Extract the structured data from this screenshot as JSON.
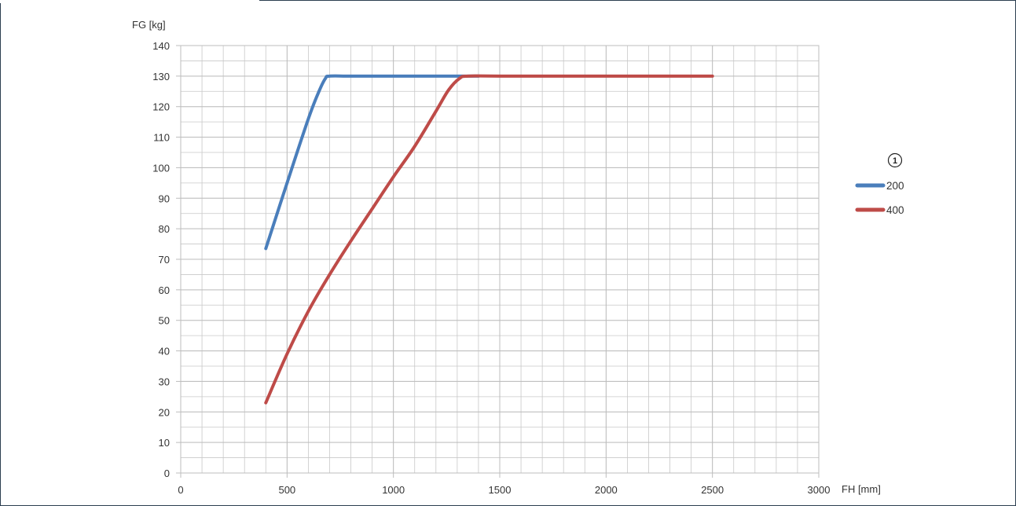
{
  "chart_data": {
    "type": "line",
    "title": "",
    "xlabel": "FH [mm]",
    "ylabel": "FG [kg]",
    "xlim": [
      0,
      3000
    ],
    "ylim": [
      0,
      140
    ],
    "x_ticks": [
      0,
      500,
      1000,
      1500,
      2000,
      2500,
      3000
    ],
    "y_ticks": [
      0,
      10,
      20,
      30,
      40,
      50,
      60,
      70,
      80,
      90,
      100,
      110,
      120,
      130,
      140
    ],
    "x_minor_step": 100,
    "y_minor_step": 5,
    "grid": true,
    "legend_placement": "right",
    "legend_marker": "1",
    "colors": {
      "grid": "#c8c8c8",
      "frame": "#2c3e50",
      "series_200": "#4a7ebb",
      "series_400": "#be4b48"
    },
    "series": [
      {
        "name": "200",
        "color": "#4a7ebb",
        "points": [
          [
            400,
            73.5
          ],
          [
            500,
            95
          ],
          [
            600,
            116
          ],
          [
            650,
            125
          ],
          [
            680,
            129.2
          ],
          [
            700,
            130
          ],
          [
            800,
            130
          ],
          [
            1000,
            130
          ],
          [
            1300,
            130
          ],
          [
            1400,
            130
          ]
        ]
      },
      {
        "name": "400",
        "color": "#be4b48",
        "points": [
          [
            400,
            23
          ],
          [
            500,
            39
          ],
          [
            600,
            53
          ],
          [
            700,
            65
          ],
          [
            800,
            76
          ],
          [
            900,
            86.5
          ],
          [
            1000,
            97
          ],
          [
            1100,
            107
          ],
          [
            1200,
            118.5
          ],
          [
            1260,
            125.5
          ],
          [
            1310,
            129.2
          ],
          [
            1350,
            130
          ],
          [
            1500,
            130
          ],
          [
            2000,
            130
          ],
          [
            2500,
            130
          ]
        ]
      }
    ]
  }
}
